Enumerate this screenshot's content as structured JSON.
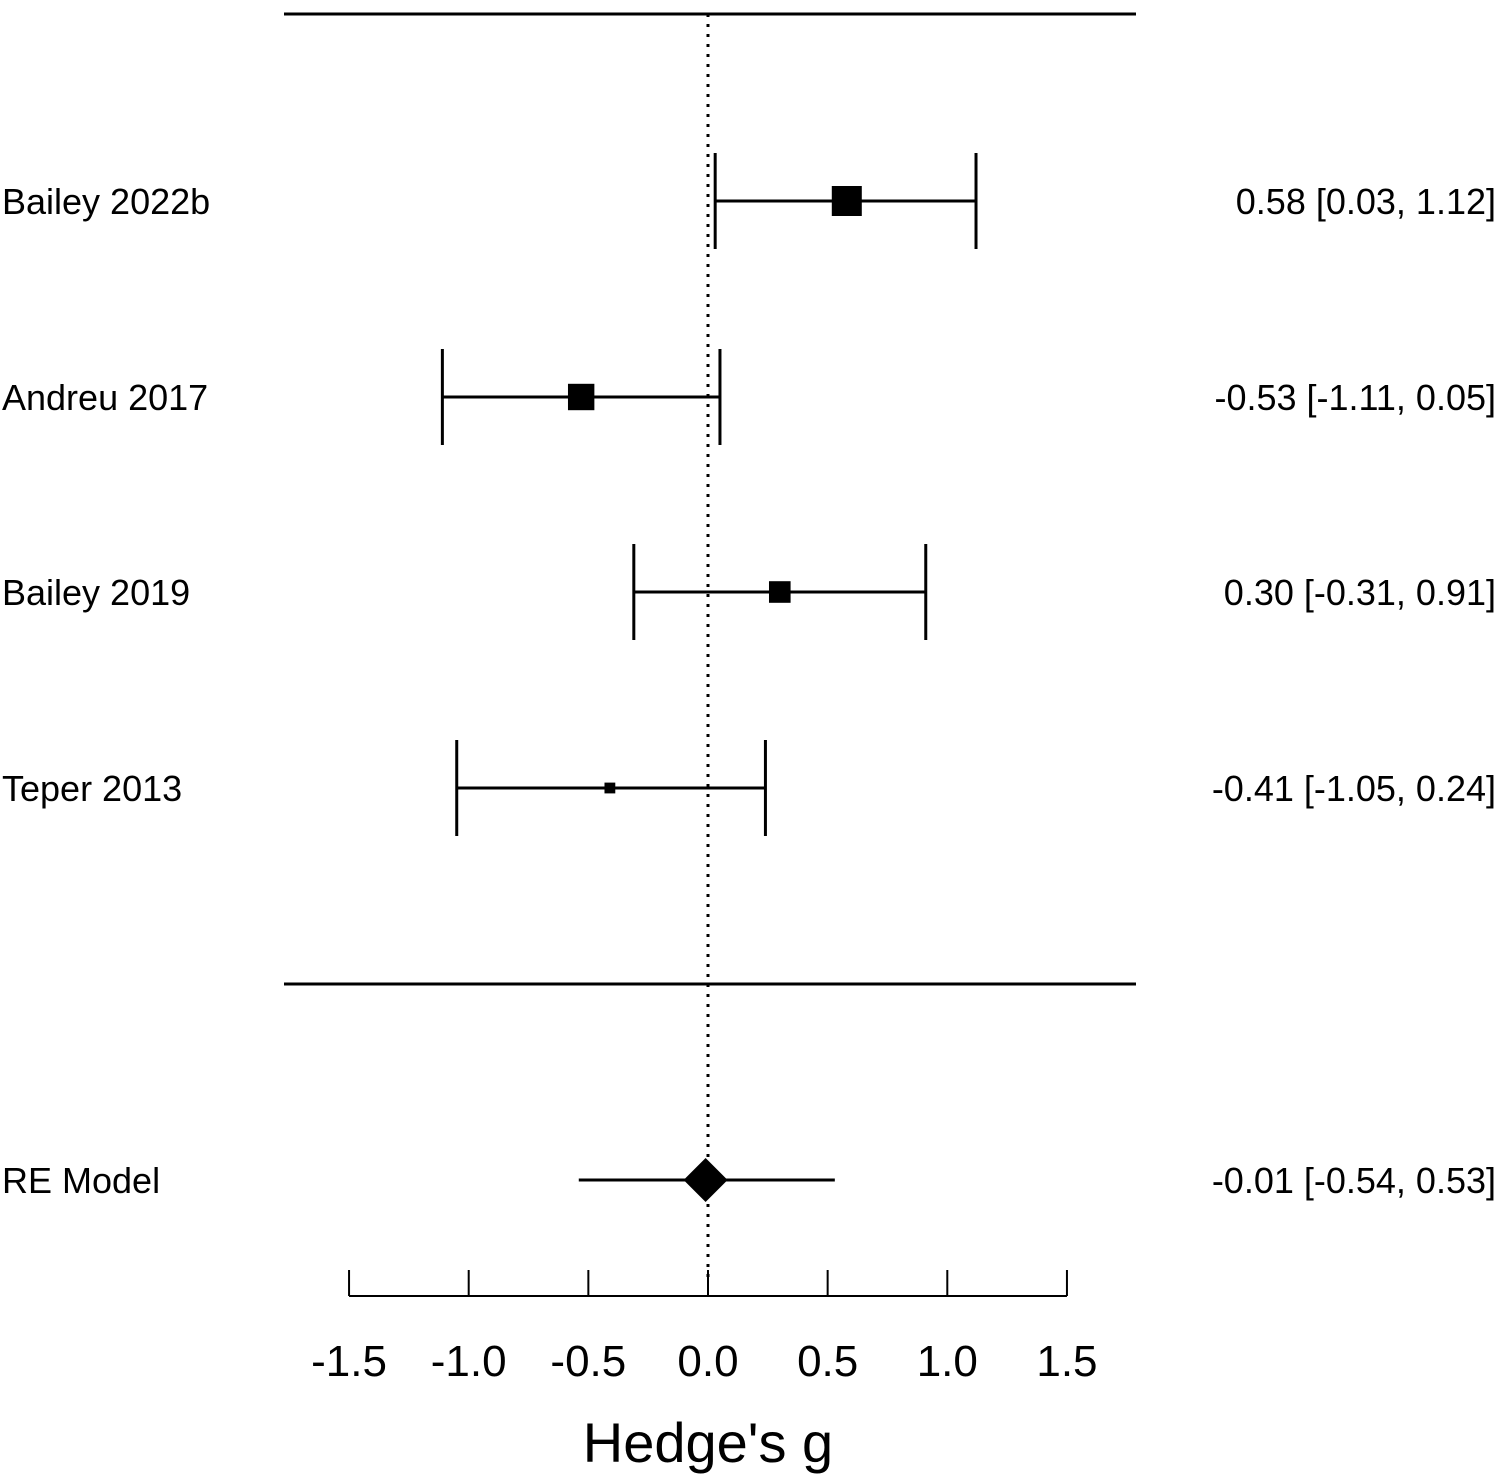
{
  "chart_data": {
    "type": "forest",
    "xlabel": "Hedge's g",
    "xlim": [
      -1.5,
      1.5
    ],
    "xticks": [
      "-1.5",
      "-1.0",
      "-0.5",
      "0.0",
      "0.5",
      "1.0",
      "1.5"
    ],
    "reference_line": 0,
    "studies": [
      {
        "name": "Bailey 2022b",
        "estimate": 0.58,
        "lower": 0.03,
        "upper": 1.12,
        "weight": 1.0,
        "label": "0.58 [0.03, 1.12]"
      },
      {
        "name": "Andreu 2017",
        "estimate": -0.53,
        "lower": -1.11,
        "upper": 0.05,
        "weight": 0.85,
        "label": "-0.53 [-1.11, 0.05]"
      },
      {
        "name": "Bailey 2019",
        "estimate": 0.3,
        "lower": -0.31,
        "upper": 0.91,
        "weight": 0.65,
        "label": "0.30 [-0.31, 0.91]"
      },
      {
        "name": "Teper 2013",
        "estimate": -0.41,
        "lower": -1.05,
        "upper": 0.24,
        "weight": 0.2,
        "label": "-0.41 [-1.05, 0.24]"
      }
    ],
    "summary": {
      "name": "RE Model",
      "estimate": -0.01,
      "lower": -0.54,
      "upper": 0.53,
      "label": "-0.01 [-0.54, 0.53]"
    }
  }
}
